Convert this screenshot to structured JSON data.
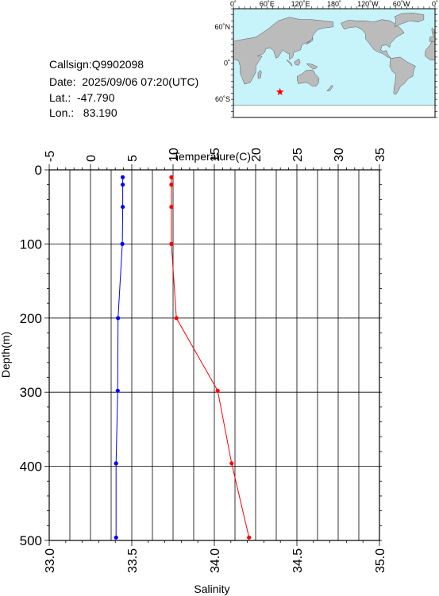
{
  "info": {
    "callsign": "Callsign:Q9902098",
    "date": "Date:  2025/09/06 07:20(UTC)",
    "lat": "Lat.:  -47.790",
    "lon": "Lon.:   83.190"
  },
  "map": {
    "top_lon_labels": [
      "0˚",
      "60˚E",
      "120˚E",
      "180˚",
      "120˚W",
      "60˚W",
      "0˚"
    ],
    "lat_labels": [
      "60˚N",
      "0˚",
      "60˚S"
    ],
    "ocean_color": "#c7f3fb",
    "land_color": "#bbbbbb",
    "marker": {
      "lon": 83.19,
      "lat": -47.79,
      "color": "#ff0000",
      "symbol": "star"
    }
  },
  "chart_data": {
    "type": "line",
    "ylabel": "Depth(m)",
    "ylim": [
      0,
      500
    ],
    "y_ticks": [
      "0",
      "100",
      "200",
      "300",
      "400",
      "500"
    ],
    "y_reversed": true,
    "temperature_axis": {
      "label": "Temperature(C)",
      "lim": [
        -5,
        35
      ],
      "ticks": [
        "-5",
        "0",
        "5",
        "10",
        "15",
        "20",
        "25",
        "30",
        "35"
      ],
      "position": "top"
    },
    "salinity_axis": {
      "label": "Salinity",
      "lim": [
        33.0,
        35.0
      ],
      "ticks": [
        "33.0",
        "33.5",
        "34.0",
        "34.5",
        "35.0"
      ],
      "position": "bottom"
    },
    "grid": true,
    "series": [
      {
        "axis": "temperature",
        "color": "#ff0000",
        "points": [
          {
            "depth": 10,
            "value": 9.8
          },
          {
            "depth": 20,
            "value": 9.8
          },
          {
            "depth": 50,
            "value": 9.8
          },
          {
            "depth": 100,
            "value": 9.8
          },
          {
            "depth": 200,
            "value": 10.4
          },
          {
            "depth": 298,
            "value": 15.4
          },
          {
            "depth": 396,
            "value": 17.1
          },
          {
            "depth": 496,
            "value": 19.2
          }
        ]
      },
      {
        "axis": "salinity",
        "color": "#0000ff",
        "points": [
          {
            "depth": 10,
            "value": 33.445
          },
          {
            "depth": 20,
            "value": 33.445
          },
          {
            "depth": 50,
            "value": 33.445
          },
          {
            "depth": 100,
            "value": 33.443
          },
          {
            "depth": 200,
            "value": 33.417
          },
          {
            "depth": 298,
            "value": 33.415
          },
          {
            "depth": 396,
            "value": 33.405
          },
          {
            "depth": 496,
            "value": 33.405
          }
        ]
      }
    ]
  }
}
